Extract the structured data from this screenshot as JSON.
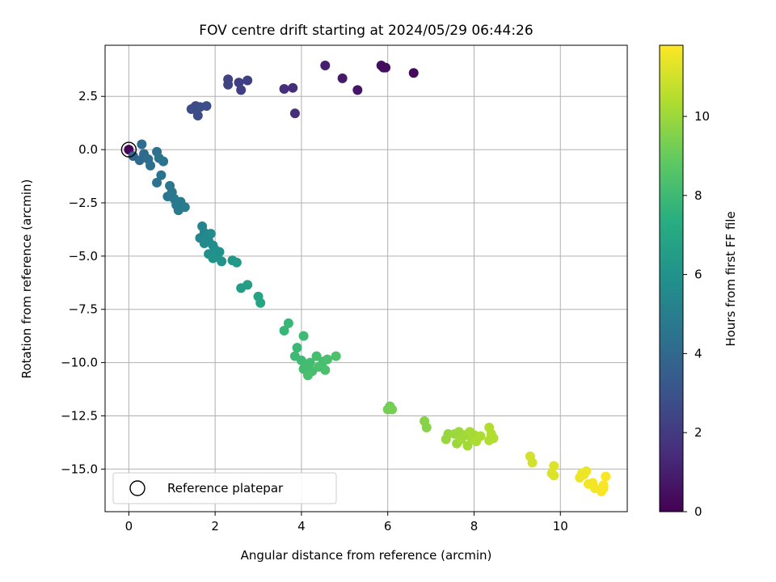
{
  "chart_data": {
    "type": "scatter",
    "title": "FOV centre drift starting at 2024/05/29 06:44:26",
    "xlabel": "Angular distance from reference (arcmin)",
    "ylabel": "Rotation from reference (arcmin)",
    "colorbar_label": "Hours from first FF file",
    "xlim": [
      -0.55,
      11.55
    ],
    "ylim": [
      -17.0,
      4.9
    ],
    "x_ticks": [
      0,
      2,
      4,
      6,
      8,
      10
    ],
    "x_tick_labels": [
      "0",
      "2",
      "4",
      "6",
      "8",
      "10"
    ],
    "y_ticks": [
      2.5,
      0.0,
      -2.5,
      -5.0,
      -7.5,
      -10.0,
      -12.5,
      -15.0
    ],
    "y_tick_labels": [
      "2.5",
      "0.0",
      "−2.5",
      "−5.0",
      "−7.5",
      "−10.0",
      "−12.5",
      "−15.0"
    ],
    "colorbar_range": [
      0,
      11.8
    ],
    "colorbar_ticks": [
      0,
      2,
      4,
      6,
      8,
      10
    ],
    "colorbar_tick_labels": [
      "0",
      "2",
      "4",
      "6",
      "8",
      "10"
    ],
    "colormap": "viridis",
    "grid": true,
    "legend_position": "lower-left",
    "legend": [
      {
        "label": "Reference platepar",
        "marker": "open-circle"
      }
    ],
    "reference_point": {
      "x": 0,
      "y": 0
    },
    "points": [
      [
        0.0,
        0.0,
        0.1
      ],
      [
        0.1,
        -0.3,
        3.8
      ],
      [
        0.25,
        -0.5,
        4.0
      ],
      [
        0.3,
        0.25,
        4.2
      ],
      [
        0.35,
        -0.2,
        4.1
      ],
      [
        0.45,
        -0.45,
        4.2
      ],
      [
        0.5,
        -0.75,
        4.3
      ],
      [
        0.65,
        -0.1,
        4.4
      ],
      [
        0.7,
        -0.4,
        4.5
      ],
      [
        0.8,
        -0.55,
        4.5
      ],
      [
        0.65,
        -1.55,
        4.4
      ],
      [
        0.75,
        -1.2,
        4.5
      ],
      [
        0.9,
        -2.2,
        4.6
      ],
      [
        0.95,
        -1.7,
        4.6
      ],
      [
        1.0,
        -2.0,
        4.7
      ],
      [
        1.05,
        -2.3,
        4.7
      ],
      [
        1.1,
        -2.6,
        4.8
      ],
      [
        1.15,
        -2.85,
        4.8
      ],
      [
        1.2,
        -2.45,
        4.8
      ],
      [
        1.3,
        -2.7,
        4.9
      ],
      [
        1.7,
        -3.6,
        5.3
      ],
      [
        1.75,
        -3.9,
        5.4
      ],
      [
        1.65,
        -4.15,
        5.4
      ],
      [
        1.8,
        -4.0,
        5.5
      ],
      [
        1.85,
        -4.3,
        5.5
      ],
      [
        1.9,
        -3.95,
        5.6
      ],
      [
        1.75,
        -4.4,
        5.6
      ],
      [
        1.95,
        -4.5,
        5.7
      ],
      [
        2.0,
        -4.7,
        5.8
      ],
      [
        1.85,
        -4.9,
        5.8
      ],
      [
        2.05,
        -5.0,
        5.9
      ],
      [
        2.1,
        -4.8,
        5.9
      ],
      [
        1.95,
        -5.1,
        6.0
      ],
      [
        2.15,
        -5.25,
        6.0
      ],
      [
        2.4,
        -5.2,
        6.2
      ],
      [
        2.5,
        -5.3,
        6.3
      ],
      [
        2.6,
        -6.5,
        6.5
      ],
      [
        2.75,
        -6.35,
        6.6
      ],
      [
        3.0,
        -6.9,
        6.8
      ],
      [
        3.05,
        -7.2,
        6.9
      ],
      [
        3.7,
        -8.15,
        7.8
      ],
      [
        3.6,
        -8.5,
        7.8
      ],
      [
        3.9,
        -9.3,
        7.9
      ],
      [
        4.05,
        -8.75,
        8.0
      ],
      [
        3.85,
        -9.7,
        8.0
      ],
      [
        4.0,
        -9.9,
        8.0
      ],
      [
        4.15,
        -10.1,
        8.1
      ],
      [
        4.05,
        -10.3,
        8.1
      ],
      [
        4.2,
        -10.0,
        8.1
      ],
      [
        4.25,
        -10.4,
        8.2
      ],
      [
        4.35,
        -9.7,
        8.2
      ],
      [
        4.5,
        -9.95,
        8.2
      ],
      [
        4.4,
        -10.2,
        8.3
      ],
      [
        4.55,
        -10.35,
        8.3
      ],
      [
        4.15,
        -10.6,
        8.3
      ],
      [
        4.6,
        -9.85,
        8.3
      ],
      [
        4.8,
        -9.7,
        8.4
      ],
      [
        6.0,
        -12.2,
        9.2
      ],
      [
        6.05,
        -12.05,
        9.2
      ],
      [
        6.1,
        -12.2,
        9.3
      ],
      [
        6.85,
        -12.75,
        9.6
      ],
      [
        6.9,
        -13.05,
        9.6
      ],
      [
        7.35,
        -13.6,
        9.9
      ],
      [
        7.4,
        -13.35,
        9.9
      ],
      [
        7.55,
        -13.35,
        10.0
      ],
      [
        7.6,
        -13.8,
        10.0
      ],
      [
        7.65,
        -13.25,
        10.0
      ],
      [
        7.7,
        -13.6,
        10.1
      ],
      [
        7.8,
        -13.4,
        10.1
      ],
      [
        7.85,
        -13.9,
        10.1
      ],
      [
        7.9,
        -13.25,
        10.2
      ],
      [
        7.95,
        -13.6,
        10.2
      ],
      [
        8.0,
        -13.4,
        10.2
      ],
      [
        8.05,
        -13.7,
        10.3
      ],
      [
        8.15,
        -13.45,
        10.3
      ],
      [
        8.35,
        -13.05,
        10.4
      ],
      [
        8.4,
        -13.35,
        10.4
      ],
      [
        8.45,
        -13.55,
        10.4
      ],
      [
        8.35,
        -13.65,
        10.4
      ],
      [
        9.3,
        -14.4,
        11.0
      ],
      [
        9.35,
        -14.7,
        11.0
      ],
      [
        9.8,
        -15.2,
        11.2
      ],
      [
        9.85,
        -14.85,
        11.2
      ],
      [
        9.85,
        -15.3,
        11.2
      ],
      [
        10.45,
        -15.4,
        11.5
      ],
      [
        10.5,
        -15.2,
        11.5
      ],
      [
        10.55,
        -15.25,
        11.5
      ],
      [
        10.6,
        -15.1,
        11.5
      ],
      [
        10.65,
        -15.7,
        11.6
      ],
      [
        10.75,
        -15.65,
        11.6
      ],
      [
        10.8,
        -15.9,
        11.6
      ],
      [
        10.95,
        -16.05,
        11.7
      ],
      [
        11.0,
        -15.75,
        11.7
      ],
      [
        11.05,
        -15.35,
        11.7
      ],
      [
        11.0,
        -15.9,
        11.7
      ],
      [
        1.45,
        1.9,
        2.7
      ],
      [
        1.55,
        2.05,
        2.7
      ],
      [
        1.5,
        1.95,
        2.7
      ],
      [
        1.65,
        2.0,
        2.8
      ],
      [
        1.6,
        1.6,
        2.7
      ],
      [
        1.8,
        2.05,
        2.8
      ],
      [
        2.3,
        3.05,
        2.3
      ],
      [
        2.3,
        3.3,
        2.3
      ],
      [
        2.55,
        3.15,
        2.2
      ],
      [
        2.6,
        2.8,
        2.2
      ],
      [
        2.75,
        3.25,
        2.2
      ],
      [
        3.6,
        2.85,
        1.6
      ],
      [
        3.8,
        2.9,
        1.5
      ],
      [
        3.85,
        1.7,
        1.5
      ],
      [
        4.55,
        3.95,
        1.0
      ],
      [
        4.95,
        3.35,
        0.8
      ],
      [
        5.3,
        2.8,
        0.7
      ],
      [
        5.85,
        3.95,
        0.5
      ],
      [
        5.9,
        3.85,
        0.4
      ],
      [
        5.95,
        3.85,
        0.4
      ],
      [
        6.6,
        3.6,
        0.3
      ]
    ]
  }
}
